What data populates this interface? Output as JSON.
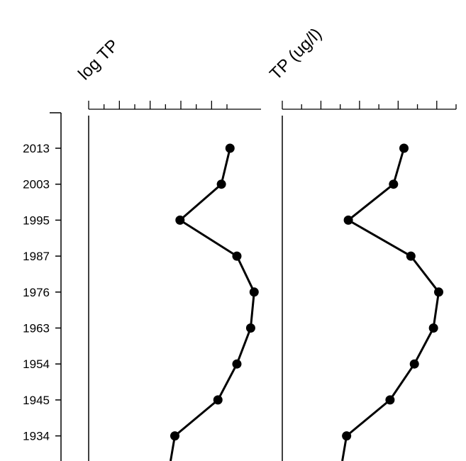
{
  "chart_data": [
    {
      "type": "line",
      "title": "log TP",
      "orientation": "stratigraphic-depth-profile",
      "y_categories": [
        "2013",
        "2003",
        "1995",
        "1987",
        "1976",
        "1963",
        "1954",
        "1945",
        "1934"
      ],
      "series": [
        {
          "values": [
            0.82,
            0.77,
            0.53,
            0.86,
            0.96,
            0.94,
            0.86,
            0.75,
            0.5
          ]
        }
      ],
      "xlim": [
        0,
        1
      ],
      "x_ticks_count": 10,
      "x_tick_labels_shown": false,
      "grid": false,
      "markers": "filled-circle",
      "color": "#000000"
    },
    {
      "type": "line",
      "title": "TP (ug/l)",
      "orientation": "stratigraphic-depth-profile",
      "y_categories": [
        "2013",
        "2003",
        "1995",
        "1987",
        "1976",
        "1963",
        "1954",
        "1945",
        "1934"
      ],
      "series": [
        {
          "values": [
            0.7,
            0.64,
            0.38,
            0.74,
            0.9,
            0.87,
            0.76,
            0.62,
            0.37
          ]
        }
      ],
      "xlim": [
        0,
        1
      ],
      "x_ticks_count": 10,
      "x_tick_labels_shown": false,
      "grid": false,
      "markers": "filled-circle",
      "color": "#000000"
    }
  ]
}
